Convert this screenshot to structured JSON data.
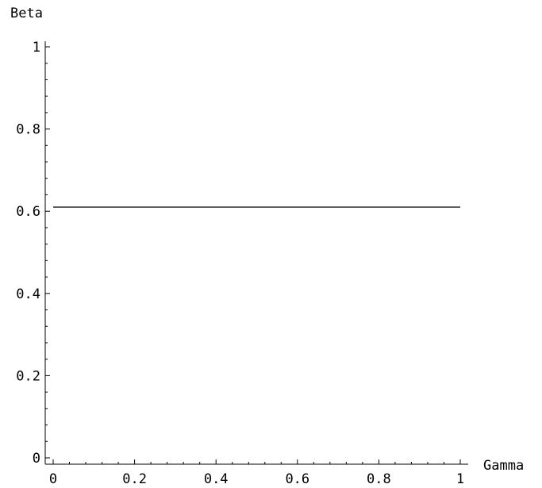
{
  "chart_data": {
    "type": "line",
    "xlabel": "Gamma",
    "ylabel": "Beta",
    "xlim": [
      0,
      1
    ],
    "ylim": [
      0,
      1
    ],
    "x_ticks": [
      0,
      0.2,
      0.4,
      0.6,
      0.8,
      1
    ],
    "x_tick_labels": [
      "0",
      "0.2",
      "0.4",
      "0.6",
      "0.8",
      "1"
    ],
    "y_ticks": [
      0,
      0.2,
      0.4,
      0.6,
      0.8,
      1
    ],
    "y_tick_labels": [
      "0",
      "0.2",
      "0.4",
      "0.6",
      "0.8",
      "1"
    ],
    "grid": false,
    "series": [
      {
        "x": [
          0,
          1
        ],
        "y": [
          0.61,
          0.61
        ],
        "color": "#000000"
      }
    ]
  }
}
